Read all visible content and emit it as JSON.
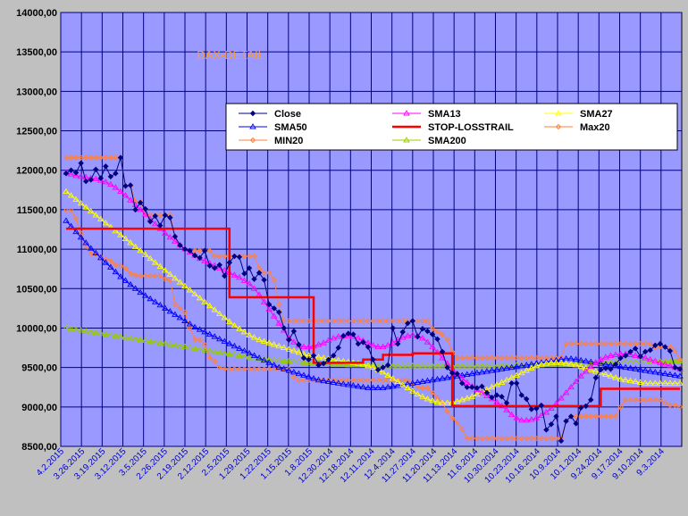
{
  "chart_data": {
    "type": "line",
    "title": "DAX-DETAIL",
    "ylim": [
      8500,
      14000
    ],
    "ytick_step": 500,
    "ytick_labels": [
      "8500,00",
      "9000,00",
      "9500,00",
      "10000,00",
      "10500,00",
      "11000,00",
      "11500,00",
      "12000,00",
      "12500,00",
      "13000,00",
      "13500,00",
      "14000,00"
    ],
    "x_reversed": true,
    "x_ticks": [
      "4.2.2015",
      "3.26.2015",
      "3.19.2015",
      "3.12.2015",
      "3.5.2015",
      "2.26.2015",
      "2.19.2015",
      "2.12.2015",
      "2.5.2015",
      "1.29.2015",
      "1.22.2015",
      "1.15.2015",
      "1.8.2015",
      "12.30.2014",
      "12.18.2014",
      "12.11.2014",
      "12.4.2014",
      "11.27.2014",
      "11.20.2014",
      "11.13.2014",
      "11.6.2014",
      "10.30.2014",
      "10.23.2014",
      "10.16.2014",
      "10.9.2014",
      "10.1.2014",
      "9.24.2014",
      "9.17.2014",
      "9.10.2014",
      "9.3.2014"
    ],
    "legend_position": "top-right",
    "colors": {
      "background": "#c0c0c0",
      "plot_area": "#9999ff",
      "grid": "#000080",
      "Close": "#000080",
      "SMA13": "#ff00ff",
      "SMA27": "#ffff00",
      "SMA50": "#0000ff",
      "STOP-LOSSTRAIL": "#ff0000",
      "Max20": "#ff8040",
      "MIN20": "#ff8040",
      "SMA200": "#99cc00"
    },
    "legend": [
      "Close",
      "SMA13",
      "SMA27",
      "SMA50",
      "STOP-LOSSTRAIL",
      "Max20",
      "MIN20",
      "SMA200"
    ],
    "series": [
      {
        "name": "Close",
        "values": [
          11960,
          12000,
          11970,
          12090,
          11860,
          11880,
          12010,
          11900,
          12050,
          11920,
          11960,
          12160,
          11800,
          11810,
          11500,
          11590,
          11510,
          11350,
          11420,
          11300,
          11430,
          11400,
          11160,
          11050,
          11000,
          10980,
          10920,
          10890,
          10980,
          10790,
          10760,
          10800,
          10660,
          10830,
          10910,
          10900,
          10690,
          10760,
          10620,
          10700,
          10610,
          10300,
          10250,
          10200,
          10000,
          9850,
          9960,
          9790,
          9620,
          9600,
          9650,
          9530,
          9550,
          9600,
          9650,
          9750,
          9900,
          9930,
          9920,
          9800,
          9820,
          9760,
          9600,
          9470,
          9500,
          9530,
          10000,
          9800,
          9950,
          10060,
          10090,
          9890,
          9990,
          9960,
          9920,
          9860,
          9700,
          9500,
          9430,
          9420,
          9300,
          9250,
          9250,
          9240,
          9260,
          9180,
          9120,
          9150,
          9130,
          9050,
          9300,
          9300,
          9150,
          9100,
          8970,
          8980,
          9020,
          8710,
          8780,
          8880,
          8570,
          8820,
          8880,
          8790,
          8990,
          9010,
          9090,
          9370,
          9470,
          9490,
          9480,
          9540,
          9620,
          9650,
          9700,
          9740,
          9640,
          9700,
          9720,
          9780,
          9800,
          9760,
          9710,
          9500,
          9480
        ]
      },
      {
        "name": "SMA13",
        "values": [
          11970,
          11950,
          11930,
          11920,
          11910,
          11900,
          11890,
          11870,
          11850,
          11820,
          11780,
          11730,
          11680,
          11620,
          11560,
          11500,
          11440,
          11380,
          11320,
          11260,
          11200,
          11150,
          11100,
          11050,
          11000,
          10960,
          10920,
          10880,
          10850,
          10820,
          10790,
          10760,
          10730,
          10700,
          10670,
          10640,
          10600,
          10560,
          10500,
          10420,
          10330,
          10240,
          10150,
          10060,
          9970,
          9880,
          9820,
          9780,
          9760,
          9760,
          9770,
          9790,
          9810,
          9840,
          9870,
          9890,
          9900,
          9900,
          9890,
          9870,
          9840,
          9810,
          9780,
          9760,
          9760,
          9780,
          9810,
          9850,
          9880,
          9900,
          9910,
          9900,
          9870,
          9820,
          9760,
          9690,
          9620,
          9550,
          9480,
          9420,
          9360,
          9310,
          9260,
          9220,
          9180,
          9140,
          9100,
          9060,
          9010,
          8960,
          8900,
          8860,
          8830,
          8830,
          8840,
          8860,
          8890,
          8930,
          8980,
          9040,
          9110,
          9180,
          9250,
          9320,
          9390,
          9450,
          9510,
          9560,
          9600,
          9630,
          9650,
          9660,
          9670,
          9670,
          9660,
          9650,
          9640,
          9620,
          9600,
          9580,
          9560,
          9540,
          9520,
          9500,
          9480
        ]
      },
      {
        "name": "SMA27",
        "values": [
          11730,
          11680,
          11630,
          11580,
          11530,
          11480,
          11430,
          11380,
          11330,
          11280,
          11230,
          11180,
          11130,
          11080,
          11030,
          10980,
          10930,
          10880,
          10830,
          10780,
          10730,
          10680,
          10630,
          10580,
          10530,
          10480,
          10430,
          10380,
          10330,
          10280,
          10230,
          10180,
          10130,
          10080,
          10030,
          9990,
          9950,
          9910,
          9880,
          9850,
          9830,
          9810,
          9790,
          9770,
          9750,
          9730,
          9710,
          9690,
          9670,
          9650,
          9640,
          9630,
          9620,
          9610,
          9600,
          9590,
          9580,
          9570,
          9560,
          9550,
          9540,
          9520,
          9500,
          9470,
          9440,
          9400,
          9360,
          9320,
          9280,
          9240,
          9200,
          9160,
          9130,
          9100,
          9080,
          9060,
          9050,
          9050,
          9060,
          9070,
          9090,
          9110,
          9130,
          9160,
          9190,
          9220,
          9250,
          9280,
          9310,
          9340,
          9370,
          9400,
          9430,
          9460,
          9490,
          9520,
          9540,
          9550,
          9560,
          9560,
          9560,
          9550,
          9540,
          9530,
          9510,
          9490,
          9470,
          9450,
          9430,
          9410,
          9390,
          9370,
          9350,
          9340,
          9330,
          9320,
          9310,
          9300,
          9300,
          9300,
          9300,
          9300,
          9300,
          9300,
          9300
        ]
      },
      {
        "name": "SMA50",
        "values": [
          11360,
          11290,
          11220,
          11150,
          11080,
          11010,
          10950,
          10890,
          10830,
          10770,
          10710,
          10650,
          10600,
          10550,
          10500,
          10450,
          10410,
          10370,
          10330,
          10290,
          10250,
          10210,
          10170,
          10130,
          10090,
          10050,
          10010,
          9980,
          9950,
          9920,
          9890,
          9860,
          9830,
          9800,
          9770,
          9740,
          9710,
          9680,
          9650,
          9620,
          9590,
          9560,
          9530,
          9500,
          9480,
          9460,
          9440,
          9420,
          9400,
          9380,
          9360,
          9340,
          9330,
          9320,
          9310,
          9300,
          9290,
          9280,
          9270,
          9260,
          9250,
          9240,
          9240,
          9240,
          9240,
          9250,
          9260,
          9270,
          9280,
          9290,
          9300,
          9310,
          9320,
          9330,
          9340,
          9350,
          9360,
          9370,
          9380,
          9390,
          9400,
          9410,
          9420,
          9430,
          9440,
          9450,
          9460,
          9470,
          9480,
          9490,
          9500,
          9510,
          9520,
          9530,
          9540,
          9550,
          9560,
          9570,
          9580,
          9590,
          9600,
          9610,
          9610,
          9600,
          9590,
          9580,
          9570,
          9560,
          9550,
          9540,
          9530,
          9520,
          9510,
          9500,
          9490,
          9480,
          9470,
          9460,
          9450,
          9440,
          9430,
          9420,
          9410,
          9400,
          9390
        ]
      },
      {
        "name": "STOP-LOSSTRAIL",
        "values": [
          11260,
          11260,
          11260,
          11260,
          11260,
          11260,
          11260,
          11260,
          11260,
          11260,
          11260,
          11260,
          11260,
          11260,
          11260,
          11260,
          11260,
          11260,
          11260,
          11260,
          11260,
          11260,
          11260,
          11260,
          11260,
          11260,
          11260,
          11260,
          11260,
          11260,
          11260,
          11260,
          11260,
          10390,
          10390,
          10390,
          10390,
          10390,
          10390,
          10390,
          10390,
          10390,
          10390,
          10390,
          10390,
          10390,
          10390,
          10390,
          10390,
          10390,
          9560,
          9560,
          9560,
          9560,
          9560,
          9560,
          9560,
          9560,
          9560,
          9560,
          9600,
          9600,
          9600,
          9600,
          9660,
          9660,
          9660,
          9660,
          9660,
          9660,
          9680,
          9680,
          9680,
          9680,
          9680,
          9680,
          9680,
          9680,
          9010,
          9010,
          9010,
          9010,
          9010,
          9010,
          9010,
          9010,
          9010,
          9010,
          9010,
          9010,
          9010,
          9010,
          9010,
          9010,
          9010,
          9010,
          9010,
          9010,
          9010,
          9010,
          9010,
          9010,
          9010,
          9010,
          9010,
          9010,
          9010,
          9010,
          9230,
          9230,
          9230,
          9230,
          9230,
          9230,
          9230,
          9230,
          9230,
          9230,
          9230,
          9230,
          9230,
          9230,
          9230,
          9230,
          9230
        ]
      },
      {
        "name": "Max20",
        "values": [
          12160,
          12160,
          12160,
          12160,
          12160,
          12160,
          12160,
          12160,
          12160,
          12160,
          12160,
          12160,
          11800,
          11800,
          11600,
          11600,
          11430,
          11430,
          11430,
          11430,
          11430,
          11430,
          11160,
          11050,
          11000,
          10980,
          10980,
          10980,
          10980,
          10980,
          10910,
          10910,
          10910,
          10910,
          10910,
          10910,
          10910,
          10910,
          10910,
          10760,
          10700,
          10700,
          10610,
          10300,
          10090,
          10090,
          10090,
          10090,
          10090,
          10090,
          10090,
          10090,
          10090,
          10090,
          10090,
          10090,
          10090,
          10090,
          10090,
          10090,
          10090,
          10090,
          10090,
          10090,
          10090,
          10090,
          10090,
          10090,
          10090,
          10090,
          10090,
          10090,
          10090,
          10090,
          9990,
          9960,
          9920,
          9860,
          9700,
          9620,
          9620,
          9620,
          9620,
          9620,
          9620,
          9620,
          9620,
          9620,
          9620,
          9620,
          9620,
          9620,
          9620,
          9620,
          9620,
          9620,
          9620,
          9620,
          9620,
          9620,
          9620,
          9800,
          9800,
          9800,
          9800,
          9800,
          9800,
          9800,
          9800,
          9800,
          9800,
          9800,
          9800,
          9800,
          9800,
          9800,
          9800,
          9800,
          9800,
          9760,
          9760,
          9760,
          9760,
          9710,
          9600
        ]
      },
      {
        "name": "MIN20",
        "values": [
          11490,
          11490,
          11390,
          11200,
          11040,
          10940,
          10940,
          10900,
          10870,
          10850,
          10800,
          10790,
          10760,
          10690,
          10670,
          10660,
          10660,
          10660,
          10660,
          10660,
          10620,
          10610,
          10300,
          10250,
          10200,
          10000,
          9850,
          9850,
          9790,
          9620,
          9580,
          9500,
          9480,
          9480,
          9480,
          9480,
          9480,
          9480,
          9480,
          9480,
          9480,
          9480,
          9480,
          9480,
          9480,
          9480,
          9380,
          9340,
          9340,
          9340,
          9340,
          9340,
          9340,
          9340,
          9340,
          9340,
          9340,
          9340,
          9340,
          9340,
          9340,
          9340,
          9340,
          9340,
          9340,
          9340,
          9340,
          9340,
          9340,
          9340,
          9300,
          9250,
          9240,
          9240,
          9180,
          9120,
          9050,
          8940,
          8860,
          8800,
          8720,
          8600,
          8600,
          8600,
          8600,
          8600,
          8600,
          8600,
          8600,
          8600,
          8600,
          8600,
          8600,
          8600,
          8600,
          8600,
          8600,
          8600,
          8600,
          8600,
          8600,
          8820,
          8880,
          8880,
          8880,
          8880,
          8880,
          8880,
          8880,
          8880,
          8880,
          8880,
          9000,
          9090,
          9090,
          9090,
          9090,
          9090,
          9090,
          9090,
          9090,
          9050,
          9020,
          9020,
          9000
        ]
      },
      {
        "name": "SMA200",
        "values": [
          10000,
          9990,
          9980,
          9970,
          9960,
          9950,
          9940,
          9930,
          9920,
          9910,
          9900,
          9890,
          9880,
          9870,
          9860,
          9850,
          9840,
          9830,
          9820,
          9810,
          9800,
          9790,
          9780,
          9770,
          9760,
          9750,
          9740,
          9730,
          9720,
          9710,
          9700,
          9690,
          9680,
          9670,
          9660,
          9650,
          9640,
          9630,
          9620,
          9610,
          9600,
          9600,
          9590,
          9590,
          9580,
          9580,
          9570,
          9570,
          9560,
          9560,
          9560,
          9550,
          9550,
          9550,
          9540,
          9540,
          9540,
          9530,
          9530,
          9530,
          9530,
          9530,
          9530,
          9520,
          9520,
          9520,
          9520,
          9520,
          9520,
          9520,
          9520,
          9520,
          9520,
          9520,
          9520,
          9520,
          9520,
          9520,
          9520,
          9520,
          9520,
          9520,
          9520,
          9520,
          9520,
          9520,
          9520,
          9520,
          9520,
          9520,
          9520,
          9530,
          9530,
          9530,
          9530,
          9530,
          9530,
          9540,
          9540,
          9540,
          9540,
          9540,
          9550,
          9550,
          9550,
          9550,
          9560,
          9560,
          9560,
          9560,
          9560,
          9570,
          9570,
          9570,
          9570,
          9570,
          9570,
          9570,
          9580,
          9580,
          9580,
          9580,
          9580,
          9580,
          9580
        ]
      }
    ]
  }
}
